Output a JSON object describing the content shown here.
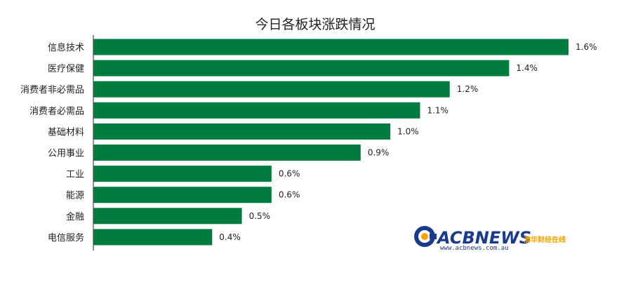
{
  "chart_data": {
    "type": "bar",
    "orientation": "horizontal",
    "title": "今日各板块涨跌情况",
    "categories": [
      "信息技术",
      "医疗保健",
      "消费者非必需品",
      "消费者必需品",
      "基础材料",
      "公用事业",
      "工业",
      "能源",
      "金融",
      "电信服务"
    ],
    "values": [
      1.6,
      1.4,
      1.2,
      1.1,
      1.0,
      0.9,
      0.6,
      0.6,
      0.5,
      0.4
    ],
    "value_labels": [
      "1.6%",
      "1.4%",
      "1.2%",
      "1.1%",
      "1.0%",
      "0.9%",
      "0.6%",
      "0.6%",
      "0.5%",
      "0.4%"
    ],
    "bar_color": "#007c3f",
    "grid": false,
    "legend": "none"
  },
  "logo": {
    "brand": "ACBNEWS",
    "brand_cn": "澳华财经在线",
    "url": "www.acbnews.com.au"
  },
  "colors": {
    "bar": "#007c3f",
    "logo_blue": "#1a3a8c",
    "logo_orange": "#f5a300"
  }
}
